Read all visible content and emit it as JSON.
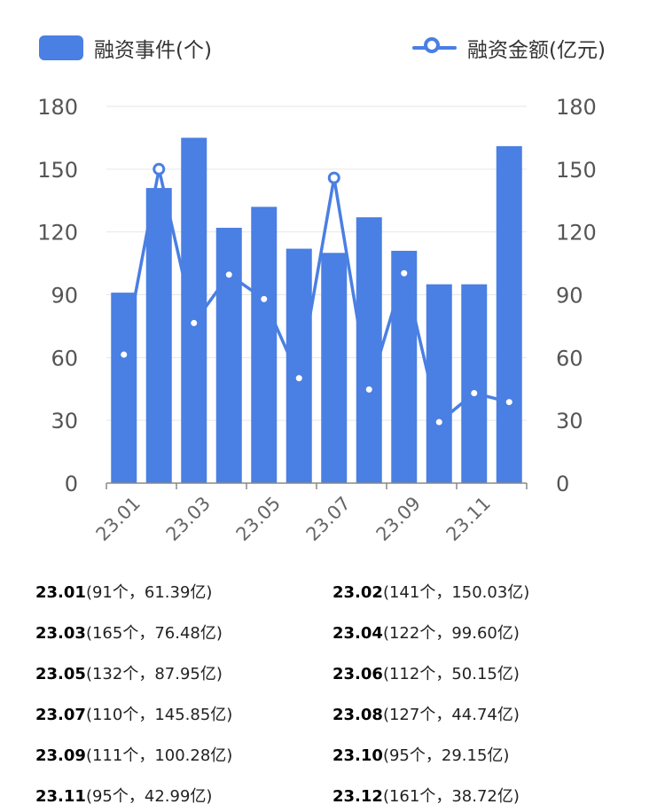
{
  "legend": {
    "bar_label": "融资事件(个)",
    "line_label": "融资金额(亿元)"
  },
  "colors": {
    "bar": "#4a7fe3",
    "line": "#4a7fe3",
    "grid": "#e6e6e6",
    "axis": "#888888"
  },
  "chart_data": {
    "type": "bar",
    "categories": [
      "23.01",
      "23.02",
      "23.03",
      "23.04",
      "23.05",
      "23.06",
      "23.07",
      "23.08",
      "23.09",
      "23.10",
      "23.11",
      "23.12"
    ],
    "x_tick_labels": [
      "23.01",
      "23.03",
      "23.05",
      "23.07",
      "23.09",
      "23.11"
    ],
    "series": [
      {
        "name": "融资事件(个)",
        "type": "bar",
        "axis": "left",
        "values": [
          91,
          141,
          165,
          122,
          132,
          112,
          110,
          127,
          111,
          95,
          95,
          161
        ]
      },
      {
        "name": "融资金额(亿元)",
        "type": "line",
        "axis": "right",
        "values": [
          61.39,
          150.03,
          76.48,
          99.6,
          87.95,
          50.15,
          145.85,
          44.74,
          100.28,
          29.15,
          42.99,
          38.72
        ]
      }
    ],
    "y_left": {
      "ticks": [
        0,
        30,
        60,
        90,
        120,
        150,
        180
      ],
      "range": [
        0,
        180
      ]
    },
    "y_right": {
      "ticks": [
        0,
        30,
        60,
        90,
        120,
        150,
        180
      ],
      "range": [
        0,
        180
      ]
    },
    "grid": true,
    "legend_position": "top"
  },
  "summary": [
    {
      "month": "23.01",
      "detail": "(91个，61.39亿)"
    },
    {
      "month": "23.02",
      "detail": "(141个，150.03亿)"
    },
    {
      "month": "23.03",
      "detail": "(165个，76.48亿)"
    },
    {
      "month": "23.04",
      "detail": "(122个，99.60亿)"
    },
    {
      "month": "23.05",
      "detail": "(132个，87.95亿)"
    },
    {
      "month": "23.06",
      "detail": "(112个，50.15亿)"
    },
    {
      "month": "23.07",
      "detail": "(110个，145.85亿)"
    },
    {
      "month": "23.08",
      "detail": "(127个，44.74亿)"
    },
    {
      "month": "23.09",
      "detail": "(111个，100.28亿)"
    },
    {
      "month": "23.10",
      "detail": "(95个，29.15亿)"
    },
    {
      "month": "23.11",
      "detail": "(95个，42.99亿)"
    },
    {
      "month": "23.12",
      "detail": "(161个，38.72亿)"
    }
  ]
}
